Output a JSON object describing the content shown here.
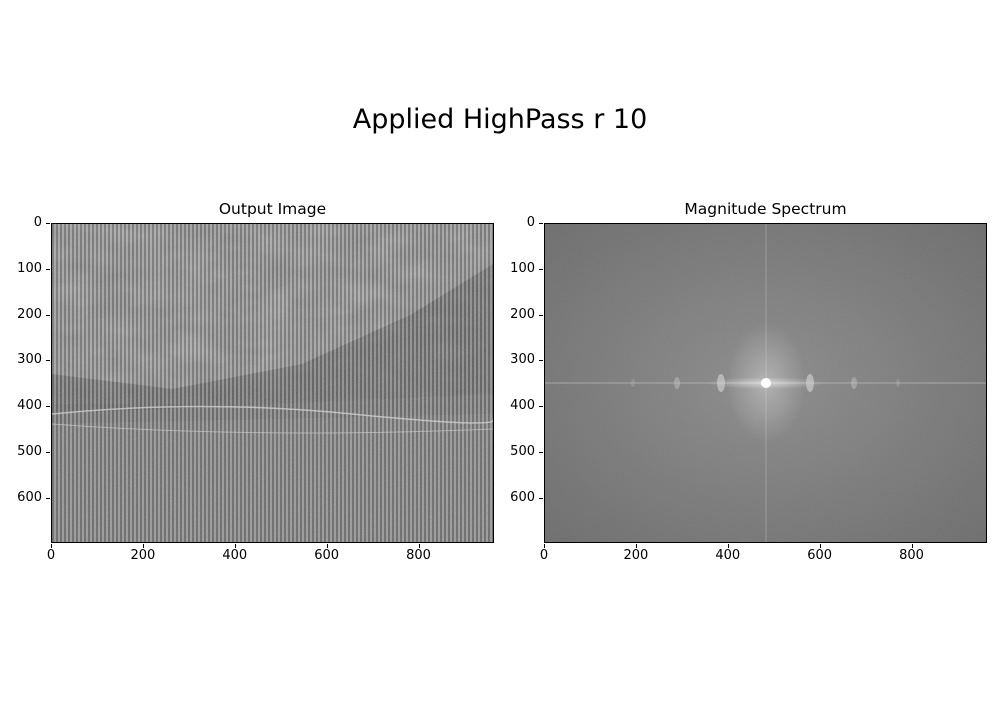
{
  "figure": {
    "title": "Applied HighPass r 10"
  },
  "panels": [
    {
      "title": "Output Image",
      "image_width": 960,
      "image_height": 694,
      "x_ticks": [
        "0",
        "200",
        "400",
        "600",
        "800"
      ],
      "y_ticks": [
        "0",
        "100",
        "200",
        "300",
        "400",
        "500",
        "600"
      ]
    },
    {
      "title": "Magnitude Spectrum",
      "image_width": 960,
      "image_height": 694,
      "x_ticks": [
        "0",
        "200",
        "400",
        "600",
        "800"
      ],
      "y_ticks": [
        "0",
        "100",
        "200",
        "300",
        "400",
        "500",
        "600"
      ]
    }
  ],
  "colors": {
    "spectrum_bg": "#7a7a7a",
    "image_mid_gray": "#8a8a8a"
  }
}
